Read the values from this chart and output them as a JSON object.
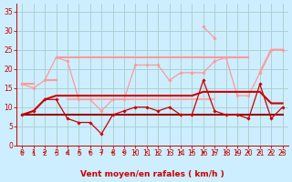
{
  "bg_color": "#cceeff",
  "grid_color": "#aacccc",
  "xlabel": "Vent moyen/en rafales ( km/h )",
  "xlabel_color": "#cc0000",
  "ylabel_ticks": [
    0,
    5,
    10,
    15,
    20,
    25,
    30,
    35
  ],
  "xlim": [
    -0.5,
    23.5
  ],
  "ylim": [
    0,
    37
  ],
  "x": [
    0,
    1,
    2,
    3,
    4,
    5,
    6,
    7,
    8,
    9,
    10,
    11,
    12,
    13,
    14,
    15,
    16,
    17,
    18,
    19,
    20,
    21,
    22,
    23
  ],
  "series": [
    {
      "y": [
        8,
        9,
        12,
        12,
        7,
        6,
        6,
        3,
        8,
        9,
        10,
        10,
        9,
        10,
        8,
        8,
        17,
        9,
        8,
        8,
        7,
        16,
        7,
        10
      ],
      "color": "#cc0000",
      "lw": 0.9,
      "marker": "D",
      "ms": 1.8,
      "zorder": 5
    },
    {
      "y": [
        8,
        9,
        12,
        13,
        13,
        13,
        13,
        13,
        13,
        13,
        13,
        13,
        13,
        13,
        13,
        13,
        14,
        14,
        14,
        14,
        14,
        14,
        11,
        11
      ],
      "color": "#cc0000",
      "lw": 1.5,
      "marker": null,
      "ms": 0,
      "zorder": 4
    },
    {
      "y": [
        8,
        8,
        8,
        8,
        8,
        8,
        8,
        8,
        8,
        8,
        8,
        8,
        8,
        8,
        8,
        8,
        8,
        8,
        8,
        8,
        8,
        8,
        8,
        8
      ],
      "color": "#990000",
      "lw": 1.5,
      "marker": null,
      "ms": 0,
      "zorder": 4
    },
    {
      "y": [
        16,
        15,
        17,
        23,
        22,
        12,
        12,
        9,
        12,
        12,
        21,
        21,
        21,
        17,
        19,
        19,
        19,
        22,
        23,
        13,
        13,
        19,
        25,
        25
      ],
      "color": "#ff9999",
      "lw": 0.9,
      "marker": "D",
      "ms": 1.8,
      "zorder": 3
    },
    {
      "y": [
        16,
        16,
        null,
        null,
        null,
        null,
        null,
        null,
        null,
        null,
        null,
        null,
        null,
        null,
        null,
        null,
        null,
        null,
        null,
        null,
        null,
        null,
        null,
        null
      ],
      "color": "#ff9999",
      "lw": 1.5,
      "marker": null,
      "ms": 0,
      "zorder": 2
    },
    {
      "y": [
        null,
        null,
        17,
        17,
        null,
        null,
        null,
        null,
        null,
        null,
        null,
        null,
        null,
        null,
        null,
        null,
        null,
        null,
        null,
        null,
        null,
        null,
        null,
        null
      ],
      "color": "#ff9999",
      "lw": 1.5,
      "marker": null,
      "ms": 0,
      "zorder": 2
    },
    {
      "y": [
        null,
        null,
        null,
        23,
        23,
        23,
        23,
        23,
        23,
        23,
        23,
        23,
        23,
        23,
        23,
        23,
        23,
        23,
        23,
        23,
        23,
        null,
        null,
        null
      ],
      "color": "#ff9999",
      "lw": 1.5,
      "marker": null,
      "ms": 0,
      "zorder": 2
    },
    {
      "y": [
        null,
        null,
        null,
        null,
        12,
        12,
        12,
        12,
        12,
        12,
        12,
        12,
        12,
        12,
        12,
        12,
        12,
        12,
        null,
        null,
        null,
        null,
        null,
        null
      ],
      "color": "#ffaaaa",
      "lw": 1.5,
      "marker": null,
      "ms": 0,
      "zorder": 2
    },
    {
      "y": [
        null,
        null,
        null,
        null,
        null,
        null,
        null,
        null,
        null,
        null,
        null,
        null,
        null,
        null,
        null,
        null,
        null,
        null,
        23,
        23,
        23,
        null,
        null,
        null
      ],
      "color": "#ff9999",
      "lw": 1.5,
      "marker": null,
      "ms": 0,
      "zorder": 2
    },
    {
      "y": [
        null,
        null,
        null,
        null,
        null,
        null,
        null,
        null,
        null,
        null,
        null,
        null,
        null,
        null,
        null,
        null,
        31,
        28,
        null,
        null,
        null,
        null,
        null,
        null
      ],
      "color": "#ff9999",
      "lw": 0.9,
      "marker": "D",
      "ms": 1.8,
      "zorder": 3
    },
    {
      "y": [
        null,
        null,
        null,
        null,
        null,
        null,
        null,
        null,
        null,
        null,
        null,
        null,
        null,
        null,
        null,
        null,
        null,
        null,
        null,
        null,
        null,
        19,
        25,
        25
      ],
      "color": "#ff9999",
      "lw": 1.5,
      "marker": null,
      "ms": 0,
      "zorder": 2
    }
  ],
  "wind_angles": [
    210,
    190,
    270,
    315,
    300,
    190,
    225,
    45,
    270,
    270,
    270,
    270,
    270,
    250,
    270,
    45,
    200,
    210,
    270,
    270,
    270,
    270,
    270,
    270
  ],
  "tick_fontsize": 5.5,
  "label_fontsize": 6.5
}
